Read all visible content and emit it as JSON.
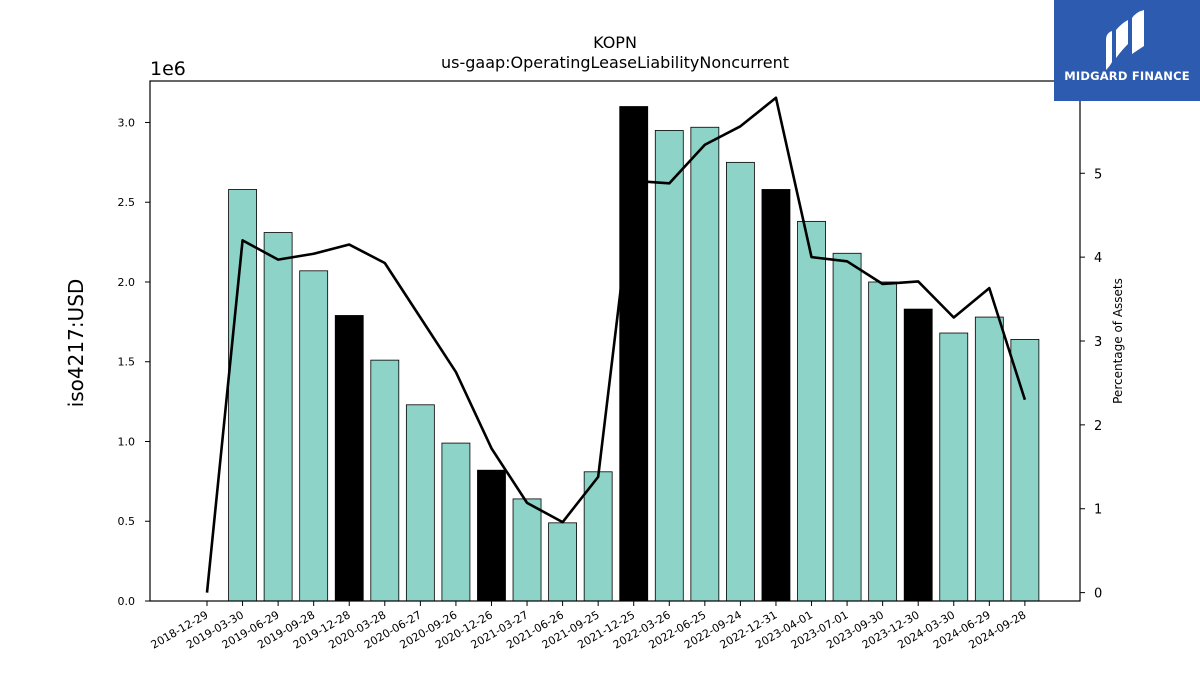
{
  "chart_data": {
    "type": "bar",
    "title": "KOPN",
    "subtitle": "us-gaap:OperatingLeaseLiabilityNoncurrent",
    "ylabel": "iso4217:USD",
    "y2label": "Percentage of Assets",
    "scale_label": "1e6",
    "ylim": [
      0,
      3260000
    ],
    "y2lim": [
      -0.1,
      6.1
    ],
    "yticks": [
      0.0,
      0.5,
      1.0,
      1.5,
      2.0,
      2.5,
      3.0
    ],
    "y2ticks": [
      0,
      1,
      2,
      3,
      4,
      5
    ],
    "categories": [
      "2018-12-29",
      "2019-03-30",
      "2019-06-29",
      "2019-09-28",
      "2019-12-28",
      "2020-03-28",
      "2020-06-27",
      "2020-09-26",
      "2020-12-26",
      "2021-03-27",
      "2021-06-26",
      "2021-09-25",
      "2021-12-25",
      "2022-03-26",
      "2022-06-25",
      "2022-09-24",
      "2022-12-31",
      "2023-04-01",
      "2023-07-01",
      "2023-09-30",
      "2023-12-30",
      "2024-03-30",
      "2024-06-29",
      "2024-09-28"
    ],
    "values": [
      null,
      2580000,
      2310000,
      2070000,
      1790000,
      1510000,
      1230000,
      990000,
      820000,
      640000,
      490000,
      810000,
      3100000,
      2950000,
      2970000,
      2750000,
      2580000,
      2380000,
      2180000,
      2000000,
      1830000,
      1680000,
      1780000,
      1640000
    ],
    "highlight": [
      false,
      false,
      false,
      false,
      true,
      false,
      false,
      false,
      true,
      false,
      false,
      false,
      true,
      false,
      false,
      false,
      true,
      false,
      false,
      false,
      true,
      false,
      false,
      false
    ],
    "pct_of_assets": [
      0.0,
      4.2,
      3.97,
      4.04,
      4.15,
      3.93,
      3.28,
      2.63,
      1.72,
      1.07,
      0.84,
      1.38,
      4.91,
      4.88,
      5.34,
      5.56,
      5.9,
      4.0,
      3.95,
      3.68,
      3.71,
      3.28,
      3.63,
      2.3
    ],
    "colors": {
      "bar": "#8dd3c7",
      "highlight": "#000000",
      "line": "#000000"
    },
    "grid": false,
    "legend": "none"
  },
  "logo": {
    "text": "MIDGARD FINANCE"
  }
}
